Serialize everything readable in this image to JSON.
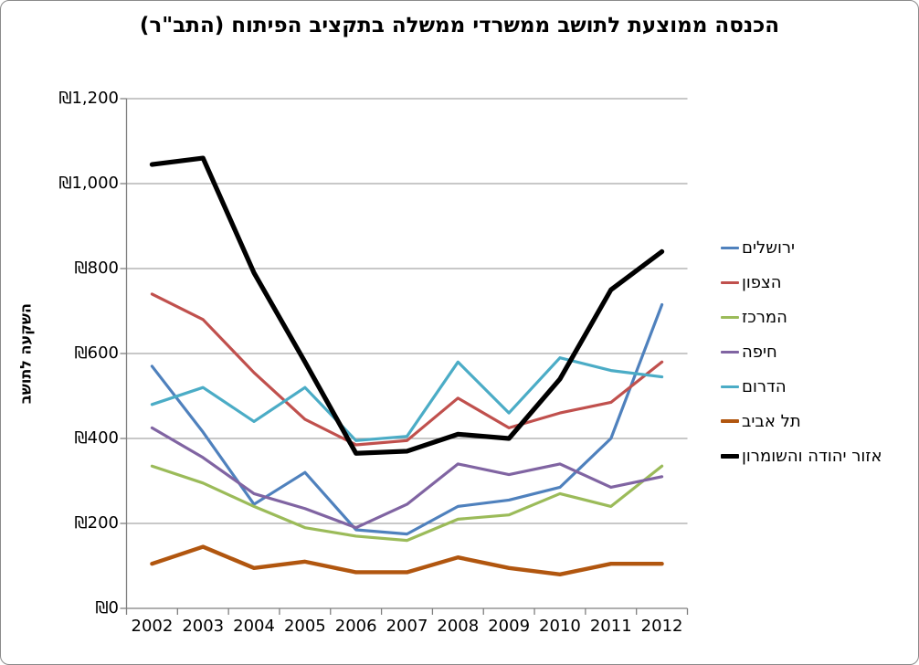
{
  "chart_data": {
    "type": "line",
    "title": "הכנסה ממוצעת לתושב ממשרדי ממשלה בתקציב הפיתוח (התב\"ר)",
    "ylabel": "השקעה לתושב",
    "currency_symbol": "₪",
    "categories": [
      "2002",
      "2003",
      "2004",
      "2005",
      "2006",
      "2007",
      "2008",
      "2009",
      "2010",
      "2011",
      "2012"
    ],
    "ylim": [
      0,
      1200
    ],
    "ytick_step": 200,
    "ytick_labels": [
      "₪0",
      "₪200",
      "₪400",
      "₪600",
      "₪800",
      "₪1,000",
      "₪1,200"
    ],
    "grid": true,
    "legend_position": "right",
    "series": [
      {
        "name": "ירושלים",
        "color": "#4F81BD",
        "line_width": 3.2,
        "values": [
          570,
          415,
          245,
          320,
          185,
          175,
          240,
          255,
          285,
          400,
          715
        ]
      },
      {
        "name": "הצפון",
        "color": "#C0504D",
        "line_width": 3.2,
        "values": [
          740,
          680,
          555,
          445,
          385,
          395,
          495,
          425,
          460,
          485,
          580
        ]
      },
      {
        "name": "המרכז",
        "color": "#9BBB59",
        "line_width": 3.2,
        "values": [
          335,
          295,
          240,
          190,
          170,
          160,
          210,
          220,
          270,
          240,
          335
        ]
      },
      {
        "name": "חיפה",
        "color": "#8064A2",
        "line_width": 3.2,
        "values": [
          425,
          355,
          270,
          235,
          190,
          245,
          340,
          315,
          340,
          285,
          310
        ]
      },
      {
        "name": "הדרום",
        "color": "#4BACC6",
        "line_width": 3.2,
        "values": [
          480,
          520,
          440,
          520,
          395,
          405,
          580,
          460,
          590,
          560,
          545
        ]
      },
      {
        "name": "תל אביב",
        "color": "#B1560F",
        "line_width": 4.4,
        "values": [
          105,
          145,
          95,
          110,
          85,
          85,
          120,
          95,
          80,
          105,
          105
        ]
      },
      {
        "name": "אזור יהודה והשומרון",
        "color": "#000000",
        "line_width": 5.2,
        "values": [
          1045,
          1060,
          790,
          580,
          365,
          370,
          410,
          400,
          540,
          750,
          840
        ]
      }
    ],
    "axis_color": "#7F7F7F",
    "grid_color": "#A6A6A6"
  }
}
